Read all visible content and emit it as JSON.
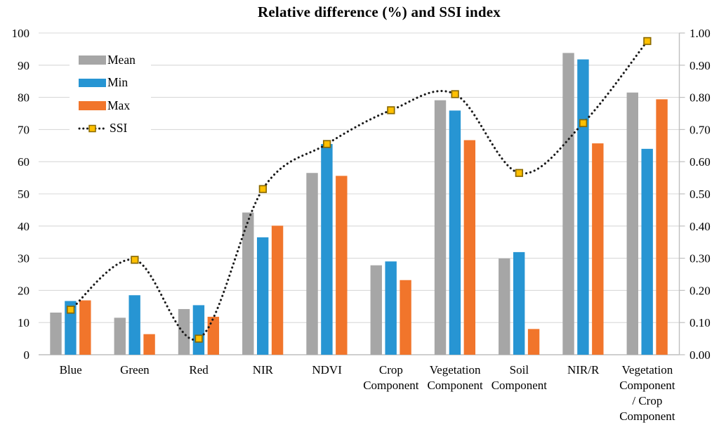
{
  "title": "Relative difference (%) and SSI index",
  "legend": {
    "items": [
      {
        "label": "Mean",
        "type": "bar",
        "color": "#A6A6A6"
      },
      {
        "label": "Min",
        "type": "bar",
        "color": "#2795D3"
      },
      {
        "label": "Max",
        "type": "bar",
        "color": "#F1752B"
      },
      {
        "label": "SSI",
        "type": "line",
        "line_color": "#1A1A1A",
        "marker_fill": "#FFC000",
        "marker_stroke": "#8A6A00"
      }
    ]
  },
  "chart_data": {
    "type": "combo-bar-line",
    "title": "Relative difference (%) and SSI index",
    "categories": [
      "Blue",
      "Green",
      "Red",
      "NIR",
      "NDVI",
      "Crop Component",
      "Vegetation Component",
      "Soil Component",
      "NIR/R",
      "Vegetation Component / Crop Component"
    ],
    "category_display_lines": [
      [
        "Blue"
      ],
      [
        "Green"
      ],
      [
        "Red"
      ],
      [
        "NIR"
      ],
      [
        "NDVI"
      ],
      [
        "Crop",
        "Component"
      ],
      [
        "Vegetation",
        "Component"
      ],
      [
        "Soil",
        "Component"
      ],
      [
        "NIR/R"
      ],
      [
        "Vegetation",
        "Component",
        "/ Crop",
        "Component"
      ]
    ],
    "series": [
      {
        "name": "Mean",
        "type": "bar",
        "axis": "left",
        "color": "#A6A6A6",
        "values": [
          13.1,
          11.5,
          14.2,
          44.2,
          56.5,
          27.8,
          79.1,
          29.9,
          93.8,
          81.5
        ]
      },
      {
        "name": "Min",
        "type": "bar",
        "axis": "left",
        "color": "#2795D3",
        "values": [
          16.7,
          18.5,
          15.4,
          36.5,
          65.5,
          29.0,
          75.9,
          31.9,
          91.8,
          64.0
        ]
      },
      {
        "name": "Max",
        "type": "bar",
        "axis": "left",
        "color": "#F1752B",
        "values": [
          16.9,
          6.4,
          11.8,
          40.1,
          55.6,
          23.2,
          66.7,
          8.0,
          65.7,
          79.4
        ]
      },
      {
        "name": "SSI",
        "type": "line",
        "axis": "right",
        "line_color": "#1A1A1A",
        "marker_fill": "#FFC000",
        "marker_stroke": "#8A6A00",
        "values": [
          0.14,
          0.295,
          0.05,
          0.515,
          0.655,
          0.76,
          0.81,
          0.565,
          0.72,
          0.975
        ]
      }
    ],
    "left_axis": {
      "min": 0,
      "max": 100,
      "ticks": [
        "100",
        "90",
        "80",
        "70",
        "60",
        "50",
        "40",
        "30",
        "20",
        "10",
        "0"
      ]
    },
    "right_axis": {
      "min": 0,
      "max": 1,
      "ticks": [
        "1.00",
        "0.90",
        "0.80",
        "0.70",
        "0.60",
        "0.50",
        "0.40",
        "0.30",
        "0.20",
        "0.10",
        "0.00"
      ]
    },
    "grid": true,
    "legend_position": "inside-top-left",
    "style": {
      "gridline_color": "#D9D9D9",
      "axis_line_color": "#BFBFBF",
      "text_color": "#000000",
      "background": "#FFFFFF"
    }
  }
}
